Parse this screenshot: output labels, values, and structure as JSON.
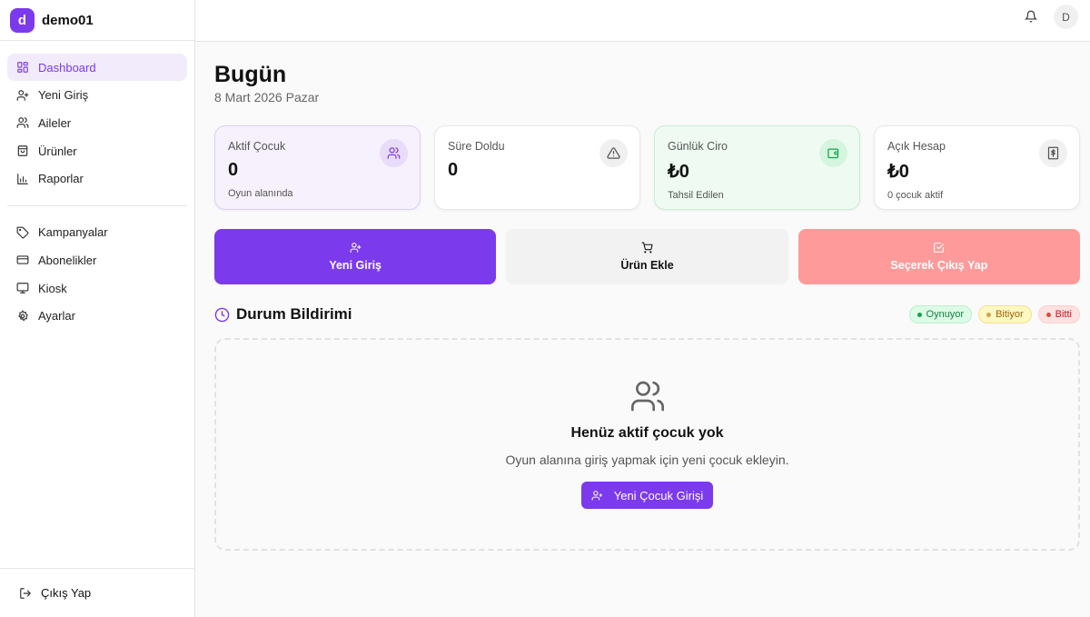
{
  "brand": {
    "initial": "d",
    "name": "demo01"
  },
  "sidebar": {
    "items": [
      {
        "label": "Dashboard",
        "icon": "grid-icon",
        "active": true
      },
      {
        "label": "Yeni Giriş",
        "icon": "user-plus-icon"
      },
      {
        "label": "Aileler",
        "icon": "users-icon"
      },
      {
        "label": "Ürünler",
        "icon": "shopping-bag-icon"
      },
      {
        "label": "Raporlar",
        "icon": "bar-chart-icon"
      },
      {
        "label": "Kampanyalar",
        "icon": "tag-icon"
      },
      {
        "label": "Abonelikler",
        "icon": "credit-card-icon"
      },
      {
        "label": "Kiosk",
        "icon": "monitor-icon"
      },
      {
        "label": "Ayarlar",
        "icon": "settings-icon"
      }
    ],
    "logout": "Çıkış Yap"
  },
  "topbar": {
    "avatar": "D"
  },
  "header": {
    "title": "Bugün",
    "date": "8 Mart 2026 Pazar"
  },
  "cards": [
    {
      "label": "Aktif Çocuk",
      "value": "0",
      "sub": "Oyun alanında"
    },
    {
      "label": "Süre Doldu",
      "value": "0",
      "sub": ""
    },
    {
      "label": "Günlük Ciro",
      "value": "₺0",
      "sub": "Tahsil Edilen"
    },
    {
      "label": "Açık Hesap",
      "value": "₺0",
      "sub": "0 çocuk aktif"
    }
  ],
  "actions": {
    "new_entry": "Yeni Giriş",
    "add_product": "Ürün Ekle",
    "checkout": "Seçerek Çıkış Yap"
  },
  "status": {
    "title": "Durum Bildirimi",
    "badges": [
      "Oynuyor",
      "Bitiyor",
      "Bitti"
    ],
    "empty_title": "Henüz aktif çocuk yok",
    "empty_sub": "Oyun alanına giriş yapmak için yeni çocuk ekleyin.",
    "empty_button": "Yeni Çocuk Girişi"
  },
  "colors": {
    "accent": "#7c3aed",
    "danger_button": "#fe9a9a"
  }
}
